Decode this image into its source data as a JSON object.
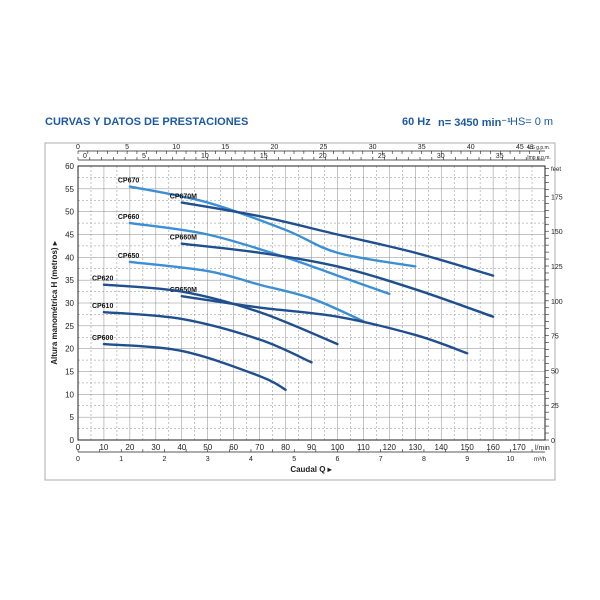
{
  "header": {
    "title": "CURVAS Y DATOS DE PRESTACIONES",
    "frequency": "60 Hz",
    "speed": "n= 3450 min⁻¹",
    "hs": "HS= 0 m"
  },
  "chart_data": {
    "type": "line",
    "ylabel": "Altura manométrica H (metros) ▸",
    "xlabel": "Caudal Q ▸",
    "xlim": [
      0,
      180
    ],
    "ylim": [
      0,
      60
    ],
    "x_unit": "l/min",
    "x_ticks": [
      0,
      10,
      20,
      30,
      40,
      50,
      60,
      70,
      80,
      90,
      100,
      110,
      120,
      130,
      140,
      150,
      160,
      170
    ],
    "y_ticks": [
      0,
      5,
      10,
      15,
      20,
      25,
      30,
      35,
      40,
      45,
      50,
      55,
      60
    ],
    "top_axes": [
      {
        "unit": "US g.p.m.",
        "prefix": "45",
        "ticks": [
          0,
          5,
          10,
          15,
          20,
          25,
          30,
          35,
          40,
          45
        ],
        "factor": 3.785
      },
      {
        "unit": "Imp g.p.m.",
        "ticks": [
          0,
          5,
          10,
          15,
          20,
          25,
          30,
          35
        ],
        "factor": 4.546
      }
    ],
    "bottom_axis2": {
      "unit": "m³/h",
      "ticks": [
        0,
        1,
        2,
        3,
        4,
        5,
        6,
        7,
        8,
        9,
        10
      ],
      "factor": 16.667
    },
    "right_axis": {
      "unit": "feet",
      "ticks": [
        0,
        25,
        50,
        75,
        100,
        125,
        150,
        175
      ],
      "factor": 0.3048
    },
    "grid": true,
    "series": [
      {
        "name": "CP670",
        "color": "#3c8fd4",
        "x": [
          20,
          50,
          80,
          100,
          130
        ],
        "y": [
          55.5,
          52,
          46,
          41,
          38
        ]
      },
      {
        "name": "CP670M",
        "color": "#1f4f8f",
        "x": [
          40,
          70,
          100,
          130,
          160
        ],
        "y": [
          52,
          49,
          45,
          41,
          36
        ]
      },
      {
        "name": "CP660",
        "color": "#3c8fd4",
        "x": [
          20,
          50,
          80,
          100,
          120
        ],
        "y": [
          47.5,
          45,
          40,
          36,
          32
        ]
      },
      {
        "name": "CP660M",
        "color": "#1f4f8f",
        "x": [
          40,
          70,
          100,
          130,
          160
        ],
        "y": [
          43,
          41,
          38,
          33,
          27
        ]
      },
      {
        "name": "CP650",
        "color": "#3c8fd4",
        "x": [
          20,
          50,
          70,
          90,
          110
        ],
        "y": [
          39,
          37,
          34,
          31,
          26
        ]
      },
      {
        "name": "CP650M",
        "color": "#1f4f8f",
        "x": [
          40,
          70,
          100,
          130,
          150
        ],
        "y": [
          31.5,
          29,
          27,
          23,
          19
        ]
      },
      {
        "name": "CP620",
        "color": "#1f4f8f",
        "x": [
          10,
          40,
          70,
          100
        ],
        "y": [
          34,
          32.5,
          28,
          21
        ]
      },
      {
        "name": "CP610",
        "color": "#1f4f8f",
        "x": [
          10,
          40,
          70,
          90
        ],
        "y": [
          28,
          26.5,
          22,
          17
        ]
      },
      {
        "name": "CP600",
        "color": "#1f4f8f",
        "x": [
          10,
          40,
          70,
          80
        ],
        "y": [
          21,
          19.5,
          14,
          11
        ]
      }
    ]
  }
}
